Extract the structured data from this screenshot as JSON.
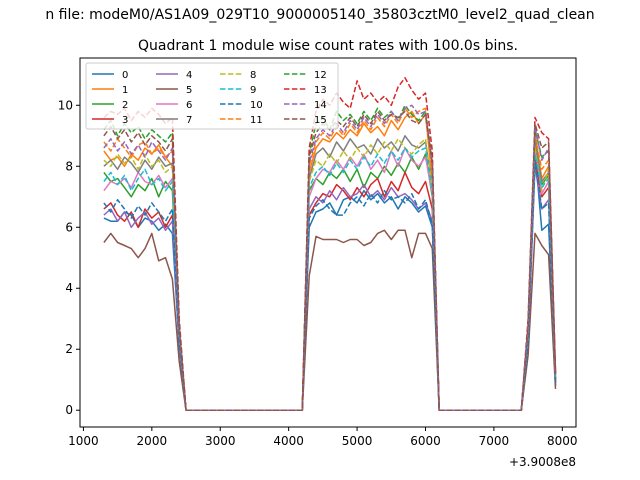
{
  "figure": {
    "suptitle": "n file: modeM0/AS1A09_029T10_9000005140_35803cztM0_level2_quad_clean",
    "offset_label": "+3.9008e8"
  },
  "chart_data": {
    "type": "line",
    "title": "Quadrant 1 module wise count rates with 100.0s bins.",
    "xlabel": "",
    "ylabel": "",
    "xlim": [
      950,
      8200
    ],
    "ylim": [
      -0.55,
      11.55
    ],
    "xticks": [
      1000,
      2000,
      3000,
      4000,
      5000,
      6000,
      7000,
      8000
    ],
    "xtick_labels": [
      "1000",
      "2000",
      "3000",
      "4000",
      "5000",
      "6000",
      "7000",
      "8000"
    ],
    "yticks": [
      0,
      2,
      4,
      6,
      8,
      10
    ],
    "ytick_labels": [
      "0",
      "2",
      "4",
      "6",
      "8",
      "10"
    ],
    "grid": false,
    "legend": {
      "placement": "top-left",
      "columns": 4
    },
    "x": [
      1300,
      1400,
      1500,
      1600,
      1700,
      1800,
      1900,
      2000,
      2100,
      2200,
      2300,
      2400,
      2500,
      2600,
      2700,
      2800,
      2900,
      3000,
      3100,
      3200,
      3300,
      3400,
      3500,
      3600,
      3700,
      3800,
      3900,
      4000,
      4100,
      4200,
      4300,
      4400,
      4500,
      4600,
      4700,
      4800,
      4900,
      5000,
      5100,
      5200,
      5300,
      5400,
      5500,
      5600,
      5700,
      5800,
      5900,
      6000,
      6100,
      6200,
      6300,
      6400,
      6500,
      6600,
      6700,
      6800,
      6900,
      7000,
      7100,
      7200,
      7300,
      7400,
      7500,
      7600,
      7700,
      7800,
      7900
    ],
    "series": [
      {
        "name": "0",
        "color": "#1f77b4",
        "dash": "solid",
        "values": [
          6.3,
          6.2,
          6.2,
          6.5,
          6.4,
          6.0,
          6.3,
          6.2,
          5.9,
          6.1,
          5.8,
          2.1,
          0.0,
          0.0,
          0.0,
          0.0,
          0.0,
          0.0,
          0.0,
          0.0,
          0.0,
          0.0,
          0.0,
          0.0,
          0.0,
          0.0,
          0.0,
          0.0,
          0.0,
          0.0,
          6.0,
          6.5,
          6.6,
          6.8,
          6.4,
          6.9,
          7.0,
          6.8,
          7.2,
          6.9,
          7.1,
          6.8,
          7.0,
          6.6,
          7.0,
          6.8,
          6.5,
          6.7,
          6.0,
          0.0,
          0.0,
          0.0,
          0.0,
          0.0,
          0.0,
          0.0,
          0.0,
          0.0,
          0.0,
          0.0,
          0.0,
          0.0,
          2.0,
          8.5,
          5.9,
          6.1,
          0.8
        ]
      },
      {
        "name": "1",
        "color": "#ff7f0e",
        "dash": "solid",
        "values": [
          8.5,
          8.2,
          8.3,
          8.0,
          8.4,
          8.2,
          8.6,
          8.4,
          8.7,
          8.3,
          8.0,
          2.6,
          0.0,
          0.0,
          0.0,
          0.0,
          0.0,
          0.0,
          0.0,
          0.0,
          0.0,
          0.0,
          0.0,
          0.0,
          0.0,
          0.0,
          0.0,
          0.0,
          0.0,
          0.0,
          7.8,
          8.6,
          8.9,
          8.8,
          9.1,
          8.9,
          9.2,
          9.0,
          9.4,
          9.1,
          9.3,
          9.0,
          9.5,
          9.2,
          9.6,
          9.8,
          9.4,
          9.7,
          7.5,
          0.0,
          0.0,
          0.0,
          0.0,
          0.0,
          0.0,
          0.0,
          0.0,
          0.0,
          0.0,
          0.0,
          0.0,
          0.0,
          2.6,
          9.1,
          7.6,
          8.0,
          1.2
        ]
      },
      {
        "name": "2",
        "color": "#2ca02c",
        "dash": "solid",
        "values": [
          7.8,
          7.5,
          7.6,
          7.3,
          7.0,
          7.4,
          7.2,
          7.6,
          7.0,
          7.5,
          7.2,
          2.4,
          0.0,
          0.0,
          0.0,
          0.0,
          0.0,
          0.0,
          0.0,
          0.0,
          0.0,
          0.0,
          0.0,
          0.0,
          0.0,
          0.0,
          0.0,
          0.0,
          0.0,
          0.0,
          7.2,
          7.6,
          7.4,
          7.8,
          7.6,
          7.9,
          7.5,
          7.9,
          7.3,
          7.8,
          7.6,
          8.0,
          7.7,
          8.1,
          7.8,
          8.3,
          7.9,
          8.4,
          7.0,
          0.0,
          0.0,
          0.0,
          0.0,
          0.0,
          0.0,
          0.0,
          0.0,
          0.0,
          0.0,
          0.0,
          0.0,
          0.0,
          2.3,
          8.9,
          7.4,
          7.7,
          1.0
        ]
      },
      {
        "name": "3",
        "color": "#d62728",
        "dash": "solid",
        "values": [
          6.6,
          6.8,
          6.4,
          6.2,
          6.5,
          6.0,
          6.6,
          6.3,
          6.5,
          6.0,
          6.4,
          2.2,
          0.0,
          0.0,
          0.0,
          0.0,
          0.0,
          0.0,
          0.0,
          0.0,
          0.0,
          0.0,
          0.0,
          0.0,
          0.0,
          0.0,
          0.0,
          0.0,
          0.0,
          0.0,
          6.4,
          6.8,
          7.1,
          7.0,
          7.4,
          7.2,
          6.9,
          7.3,
          7.0,
          7.4,
          7.6,
          7.0,
          7.5,
          7.2,
          7.8,
          7.3,
          7.1,
          7.5,
          6.6,
          0.0,
          0.0,
          0.0,
          0.0,
          0.0,
          0.0,
          0.0,
          0.0,
          0.0,
          0.0,
          0.0,
          0.0,
          0.0,
          2.2,
          8.3,
          7.0,
          7.3,
          0.9
        ]
      },
      {
        "name": "4",
        "color": "#9467bd",
        "dash": "solid",
        "values": [
          6.4,
          6.6,
          6.2,
          6.5,
          6.0,
          6.3,
          6.5,
          6.1,
          6.3,
          5.9,
          6.2,
          2.1,
          0.0,
          0.0,
          0.0,
          0.0,
          0.0,
          0.0,
          0.0,
          0.0,
          0.0,
          0.0,
          0.0,
          0.0,
          0.0,
          0.0,
          0.0,
          0.0,
          0.0,
          0.0,
          6.6,
          7.0,
          6.8,
          7.2,
          6.9,
          7.3,
          7.0,
          7.1,
          7.4,
          7.0,
          7.2,
          6.9,
          7.3,
          7.0,
          7.1,
          6.9,
          6.6,
          6.8,
          6.2,
          0.0,
          0.0,
          0.0,
          0.0,
          0.0,
          0.0,
          0.0,
          0.0,
          0.0,
          0.0,
          0.0,
          0.0,
          0.0,
          2.1,
          8.0,
          6.6,
          6.9,
          0.8
        ]
      },
      {
        "name": "5",
        "color": "#8c564b",
        "dash": "solid",
        "values": [
          5.5,
          5.8,
          5.5,
          5.4,
          5.3,
          5.0,
          5.3,
          5.8,
          4.9,
          5.0,
          4.3,
          1.6,
          0.0,
          0.0,
          0.0,
          0.0,
          0.0,
          0.0,
          0.0,
          0.0,
          0.0,
          0.0,
          0.0,
          0.0,
          0.0,
          0.0,
          0.0,
          0.0,
          0.0,
          0.0,
          4.4,
          5.7,
          5.6,
          5.6,
          5.6,
          5.5,
          5.6,
          5.6,
          5.4,
          5.5,
          5.8,
          5.9,
          5.6,
          5.9,
          5.9,
          5.0,
          5.8,
          5.8,
          5.3,
          0.0,
          0.0,
          0.0,
          0.0,
          0.0,
          0.0,
          0.0,
          0.0,
          0.0,
          0.0,
          0.0,
          0.0,
          0.0,
          1.8,
          5.8,
          5.4,
          5.1,
          0.7
        ]
      },
      {
        "name": "6",
        "color": "#e377c2",
        "dash": "solid",
        "values": [
          7.2,
          7.5,
          7.4,
          7.6,
          7.3,
          7.8,
          7.5,
          7.4,
          7.7,
          7.3,
          7.6,
          2.5,
          0.0,
          0.0,
          0.0,
          0.0,
          0.0,
          0.0,
          0.0,
          0.0,
          0.0,
          0.0,
          0.0,
          0.0,
          0.0,
          0.0,
          0.0,
          0.0,
          0.0,
          0.0,
          7.0,
          7.6,
          7.9,
          7.8,
          8.2,
          7.9,
          8.3,
          8.0,
          8.4,
          7.9,
          8.2,
          7.8,
          8.5,
          8.0,
          8.6,
          8.2,
          8.0,
          8.3,
          7.1,
          0.0,
          0.0,
          0.0,
          0.0,
          0.0,
          0.0,
          0.0,
          0.0,
          0.0,
          0.0,
          0.0,
          0.0,
          0.0,
          2.4,
          8.7,
          7.1,
          7.5,
          1.0
        ]
      },
      {
        "name": "7",
        "color": "#7f7f7f",
        "dash": "solid",
        "values": [
          8.0,
          8.2,
          7.9,
          8.3,
          8.1,
          7.8,
          8.2,
          7.9,
          8.3,
          8.0,
          8.1,
          2.6,
          0.0,
          0.0,
          0.0,
          0.0,
          0.0,
          0.0,
          0.0,
          0.0,
          0.0,
          0.0,
          0.0,
          0.0,
          0.0,
          0.0,
          0.0,
          0.0,
          0.0,
          0.0,
          7.6,
          8.4,
          8.6,
          8.3,
          8.8,
          8.5,
          8.9,
          8.6,
          8.7,
          8.4,
          8.9,
          8.6,
          8.8,
          8.5,
          9.0,
          8.7,
          8.6,
          8.8,
          7.4,
          0.0,
          0.0,
          0.0,
          0.0,
          0.0,
          0.0,
          0.0,
          0.0,
          0.0,
          0.0,
          0.0,
          0.0,
          0.0,
          2.5,
          8.8,
          7.5,
          7.8,
          1.0
        ]
      },
      {
        "name": "8",
        "color": "#bcbd22",
        "dash": "dashed",
        "values": [
          8.2,
          8.0,
          8.4,
          8.1,
          8.3,
          7.9,
          8.4,
          8.0,
          8.2,
          7.8,
          8.0,
          2.6,
          0.0,
          0.0,
          0.0,
          0.0,
          0.0,
          0.0,
          0.0,
          0.0,
          0.0,
          0.0,
          0.0,
          0.0,
          0.0,
          0.0,
          0.0,
          0.0,
          0.0,
          0.0,
          7.5,
          8.2,
          8.0,
          8.4,
          8.1,
          8.5,
          8.2,
          8.6,
          8.3,
          8.7,
          8.4,
          8.8,
          8.5,
          8.9,
          8.6,
          8.4,
          8.7,
          8.9,
          7.3,
          0.0,
          0.0,
          0.0,
          0.0,
          0.0,
          0.0,
          0.0,
          0.0,
          0.0,
          0.0,
          0.0,
          0.0,
          0.0,
          2.5,
          8.6,
          7.2,
          7.9,
          1.0
        ]
      },
      {
        "name": "9",
        "color": "#17becf",
        "dash": "dashed",
        "values": [
          7.5,
          7.8,
          7.4,
          7.7,
          7.2,
          7.6,
          7.9,
          7.4,
          7.6,
          7.2,
          7.5,
          2.4,
          0.0,
          0.0,
          0.0,
          0.0,
          0.0,
          0.0,
          0.0,
          0.0,
          0.0,
          0.0,
          0.0,
          0.0,
          0.0,
          0.0,
          0.0,
          0.0,
          0.0,
          0.0,
          7.3,
          7.8,
          8.0,
          7.7,
          8.1,
          7.8,
          8.2,
          7.9,
          8.3,
          8.0,
          8.4,
          8.1,
          8.5,
          8.2,
          8.6,
          8.3,
          8.5,
          8.6,
          7.2,
          0.0,
          0.0,
          0.0,
          0.0,
          0.0,
          0.0,
          0.0,
          0.0,
          0.0,
          0.0,
          0.0,
          0.0,
          0.0,
          2.4,
          8.4,
          7.3,
          7.6,
          1.0
        ]
      },
      {
        "name": "10",
        "color": "#1f77b4",
        "dash": "dashed",
        "values": [
          6.8,
          6.5,
          6.9,
          6.6,
          6.3,
          6.7,
          6.4,
          6.8,
          6.5,
          6.2,
          6.6,
          2.2,
          0.0,
          0.0,
          0.0,
          0.0,
          0.0,
          0.0,
          0.0,
          0.0,
          0.0,
          0.0,
          0.0,
          0.0,
          0.0,
          0.0,
          0.0,
          0.0,
          0.0,
          0.0,
          6.3,
          6.7,
          6.9,
          6.6,
          6.4,
          6.4,
          6.8,
          7.0,
          6.7,
          7.1,
          6.8,
          7.2,
          6.9,
          7.0,
          6.8,
          7.1,
          6.6,
          6.9,
          6.1,
          0.0,
          0.0,
          0.0,
          0.0,
          0.0,
          0.0,
          0.0,
          0.0,
          0.0,
          0.0,
          0.0,
          0.0,
          0.0,
          2.2,
          8.2,
          6.6,
          6.8,
          0.9
        ]
      },
      {
        "name": "11",
        "color": "#ff7f0e",
        "dash": "dashed",
        "values": [
          8.8,
          8.5,
          8.9,
          8.6,
          8.3,
          8.7,
          8.8,
          8.4,
          8.6,
          8.3,
          8.5,
          2.7,
          0.0,
          0.0,
          0.0,
          0.0,
          0.0,
          0.0,
          0.0,
          0.0,
          0.0,
          0.0,
          0.0,
          0.0,
          0.0,
          0.0,
          0.0,
          0.0,
          0.0,
          0.0,
          8.0,
          8.8,
          9.1,
          8.9,
          9.3,
          9.0,
          9.4,
          9.1,
          9.5,
          9.2,
          9.6,
          9.3,
          9.7,
          9.4,
          9.9,
          9.6,
          9.8,
          9.9,
          7.8,
          0.0,
          0.0,
          0.0,
          0.0,
          0.0,
          0.0,
          0.0,
          0.0,
          0.0,
          0.0,
          0.0,
          0.0,
          0.0,
          2.7,
          9.0,
          7.9,
          8.2,
          1.1
        ]
      },
      {
        "name": "12",
        "color": "#2ca02c",
        "dash": "dashed",
        "values": [
          9.2,
          9.5,
          9.0,
          9.4,
          9.1,
          9.3,
          8.9,
          9.2,
          9.0,
          8.8,
          9.1,
          2.8,
          0.0,
          0.0,
          0.0,
          0.0,
          0.0,
          0.0,
          0.0,
          0.0,
          0.0,
          0.0,
          0.0,
          0.0,
          0.0,
          0.0,
          0.0,
          0.0,
          0.0,
          0.0,
          8.4,
          9.4,
          9.6,
          9.2,
          9.8,
          9.5,
          9.7,
          9.4,
          9.8,
          9.5,
          9.9,
          9.6,
          9.8,
          9.5,
          10.0,
          9.7,
          9.5,
          9.8,
          8.2,
          0.0,
          0.0,
          0.0,
          0.0,
          0.0,
          0.0,
          0.0,
          0.0,
          0.0,
          0.0,
          0.0,
          0.0,
          0.0,
          2.8,
          9.2,
          8.3,
          8.5,
          1.2
        ]
      },
      {
        "name": "13",
        "color": "#d62728",
        "dash": "dashed",
        "values": [
          9.6,
          9.8,
          9.7,
          9.9,
          9.5,
          9.8,
          9.6,
          9.9,
          9.7,
          9.4,
          9.6,
          3.0,
          0.0,
          0.0,
          0.0,
          0.0,
          0.0,
          0.0,
          0.0,
          0.0,
          0.0,
          0.0,
          0.0,
          0.0,
          0.0,
          0.0,
          0.0,
          0.0,
          0.0,
          0.0,
          8.6,
          9.8,
          10.2,
          10.0,
          10.4,
          10.1,
          9.9,
          10.8,
          10.2,
          10.4,
          10.1,
          10.3,
          10.0,
          10.6,
          10.9,
          10.5,
          10.2,
          10.4,
          8.5,
          0.0,
          0.0,
          0.0,
          0.0,
          0.0,
          0.0,
          0.0,
          0.0,
          0.0,
          0.0,
          0.0,
          0.0,
          0.0,
          3.0,
          9.6,
          9.1,
          8.9,
          1.3
        ]
      },
      {
        "name": "14",
        "color": "#9467bd",
        "dash": "dashed",
        "values": [
          8.6,
          8.9,
          8.5,
          8.8,
          8.4,
          8.7,
          8.3,
          8.8,
          8.5,
          8.2,
          8.6,
          2.7,
          0.0,
          0.0,
          0.0,
          0.0,
          0.0,
          0.0,
          0.0,
          0.0,
          0.0,
          0.0,
          0.0,
          0.0,
          0.0,
          0.0,
          0.0,
          0.0,
          0.0,
          0.0,
          8.1,
          8.9,
          9.2,
          9.0,
          9.4,
          9.1,
          9.5,
          9.2,
          9.6,
          9.3,
          9.7,
          9.4,
          9.8,
          9.5,
          9.9,
          10.0,
          9.7,
          9.8,
          8.0,
          0.0,
          0.0,
          0.0,
          0.0,
          0.0,
          0.0,
          0.0,
          0.0,
          0.0,
          0.0,
          0.0,
          0.0,
          0.0,
          2.7,
          9.3,
          8.2,
          8.6,
          1.1
        ]
      },
      {
        "name": "15",
        "color": "#8c564b",
        "dash": "dashed",
        "values": [
          9.0,
          9.3,
          8.9,
          9.2,
          8.8,
          9.1,
          8.7,
          9.0,
          8.8,
          8.5,
          8.9,
          2.8,
          0.0,
          0.0,
          0.0,
          0.0,
          0.0,
          0.0,
          0.0,
          0.0,
          0.0,
          0.0,
          0.0,
          0.0,
          0.0,
          0.0,
          0.0,
          0.0,
          0.0,
          0.0,
          8.3,
          9.1,
          9.4,
          9.2,
          9.5,
          9.3,
          9.6,
          9.3,
          9.7,
          9.4,
          9.8,
          9.5,
          9.7,
          9.6,
          9.8,
          9.5,
          9.4,
          9.7,
          8.1,
          0.0,
          0.0,
          0.0,
          0.0,
          0.0,
          0.0,
          0.0,
          0.0,
          0.0,
          0.0,
          0.0,
          0.0,
          0.0,
          2.8,
          9.4,
          8.6,
          8.8,
          1.2
        ]
      }
    ]
  }
}
